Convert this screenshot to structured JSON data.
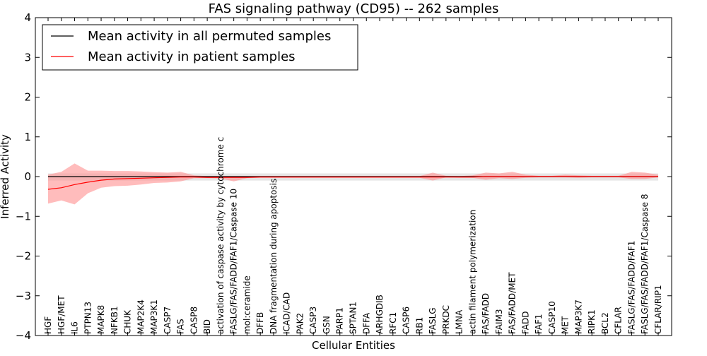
{
  "chart_data": {
    "type": "line",
    "title": "FAS signaling pathway (CD95) -- 262 samples",
    "xlabel": "Cellular Entities",
    "ylabel": "Inferred Activity",
    "ylim": [
      -4,
      4
    ],
    "yticks": [
      4,
      3,
      2,
      1,
      0,
      -1,
      -2,
      -3,
      -4
    ],
    "yticklabels": [
      "4",
      "3",
      "2",
      "1",
      "0",
      "−1",
      "−2",
      "−3",
      "−4"
    ],
    "grid": false,
    "legend_position": "upper-left",
    "categories": [
      "HGF",
      "HGF/MET",
      "IL6",
      "PTPN13",
      "MAPK8",
      "NFKB1",
      "CHUK",
      "MAP2K4",
      "MAP3K1",
      "CASP7",
      "FAS",
      "CASP8",
      "BID",
      "activation of caspase activity by cytochrome c",
      "FASLG/FAS/FADD/FAF1/Caspase 10",
      "mol:ceramide",
      "DFFB",
      "DNA fragmentation during apoptosis",
      "ICAD/CAD",
      "PAK2",
      "CASP3",
      "GSN",
      "PARP1",
      "SPTAN1",
      "DFFA",
      "ARHGDIB",
      "RFC1",
      "CASP6",
      "RB1",
      "FASLG",
      "PRKDC",
      "LMNA",
      "actin filament polymerization",
      "FAS/FADD",
      "FAIM3",
      "FAS/FADD/MET",
      "FADD",
      "FAF1",
      "CASP10",
      "MET",
      "MAP3K7",
      "RIPK1",
      "BCL2",
      "CFLAR",
      "FASLG/FAS/FADD/FAF1",
      "FASLG/FAS/FADD/FAF1/Caspase 8",
      "CFLAR/RIP1"
    ],
    "series": [
      {
        "name": "Mean activity in all permuted samples",
        "color": "#000000",
        "band_color": "#c8c8c8",
        "values": [
          0.0,
          0.0,
          0.0,
          0.0,
          0.0,
          0.0,
          0.0,
          0.0,
          0.0,
          0.0,
          0.0,
          0.0,
          0.0,
          0.0,
          0.0,
          0.0,
          0.0,
          0.0,
          0.0,
          0.0,
          0.0,
          0.0,
          0.0,
          0.0,
          0.0,
          0.0,
          0.0,
          0.0,
          0.0,
          0.0,
          0.0,
          0.0,
          0.0,
          0.0,
          0.0,
          0.0,
          0.0,
          0.0,
          0.0,
          0.0,
          0.0,
          0.0,
          0.0,
          0.0,
          0.0,
          0.0,
          0.0
        ],
        "upper": [
          0.08,
          0.08,
          0.08,
          0.08,
          0.08,
          0.08,
          0.08,
          0.08,
          0.08,
          0.08,
          0.08,
          0.08,
          0.08,
          0.08,
          0.08,
          0.08,
          0.08,
          0.08,
          0.08,
          0.08,
          0.08,
          0.08,
          0.08,
          0.08,
          0.08,
          0.08,
          0.08,
          0.08,
          0.08,
          0.08,
          0.08,
          0.08,
          0.08,
          0.08,
          0.08,
          0.08,
          0.08,
          0.08,
          0.08,
          0.08,
          0.08,
          0.08,
          0.08,
          0.08,
          0.08,
          0.08,
          0.08
        ],
        "lower": [
          -0.1,
          -0.1,
          -0.1,
          -0.1,
          -0.1,
          -0.1,
          -0.1,
          -0.1,
          -0.1,
          -0.1,
          -0.1,
          -0.1,
          -0.1,
          -0.1,
          -0.1,
          -0.1,
          -0.1,
          -0.1,
          -0.1,
          -0.1,
          -0.1,
          -0.1,
          -0.1,
          -0.1,
          -0.1,
          -0.1,
          -0.1,
          -0.1,
          -0.1,
          -0.1,
          -0.1,
          -0.1,
          -0.1,
          -0.1,
          -0.1,
          -0.1,
          -0.1,
          -0.1,
          -0.1,
          -0.1,
          -0.1,
          -0.1,
          -0.1,
          -0.1,
          -0.1,
          -0.1,
          -0.1
        ]
      },
      {
        "name": "Mean activity in patient samples",
        "color": "#ff0000",
        "band_color": "#ff9090",
        "values": [
          -0.32,
          -0.28,
          -0.2,
          -0.14,
          -0.09,
          -0.06,
          -0.05,
          -0.04,
          -0.03,
          -0.02,
          -0.01,
          -0.01,
          -0.02,
          -0.02,
          -0.02,
          -0.02,
          -0.01,
          -0.01,
          -0.01,
          -0.01,
          -0.01,
          -0.01,
          -0.01,
          -0.01,
          -0.01,
          -0.01,
          -0.01,
          -0.01,
          -0.01,
          -0.01,
          -0.01,
          -0.01,
          -0.01,
          0.0,
          0.0,
          0.0,
          0.0,
          0.0,
          0.0,
          0.0,
          0.0,
          0.0,
          0.0,
          0.0,
          0.0,
          0.0,
          0.0
        ],
        "upper": [
          0.05,
          0.12,
          0.33,
          0.15,
          0.15,
          0.14,
          0.14,
          0.13,
          0.11,
          0.1,
          0.12,
          0.03,
          0.01,
          0.01,
          0.01,
          0.01,
          0.01,
          0.01,
          0.01,
          0.01,
          0.01,
          0.01,
          0.01,
          0.01,
          0.01,
          0.01,
          0.01,
          0.01,
          0.01,
          0.1,
          0.02,
          0.01,
          0.03,
          0.1,
          0.08,
          0.12,
          0.05,
          0.02,
          0.02,
          0.05,
          0.03,
          0.02,
          0.02,
          0.02,
          0.12,
          0.1,
          0.05
        ],
        "lower": [
          -0.68,
          -0.6,
          -0.7,
          -0.42,
          -0.28,
          -0.24,
          -0.23,
          -0.2,
          -0.16,
          -0.15,
          -0.12,
          -0.04,
          -0.04,
          -0.05,
          -0.12,
          -0.04,
          -0.03,
          -0.03,
          -0.03,
          -0.03,
          -0.03,
          -0.03,
          -0.03,
          -0.03,
          -0.03,
          -0.03,
          -0.03,
          -0.03,
          -0.03,
          -0.1,
          -0.02,
          -0.03,
          -0.03,
          -0.08,
          -0.04,
          -0.06,
          -0.03,
          -0.02,
          -0.02,
          -0.02,
          -0.03,
          -0.02,
          -0.02,
          -0.02,
          -0.06,
          -0.06,
          -0.02
        ]
      }
    ]
  }
}
